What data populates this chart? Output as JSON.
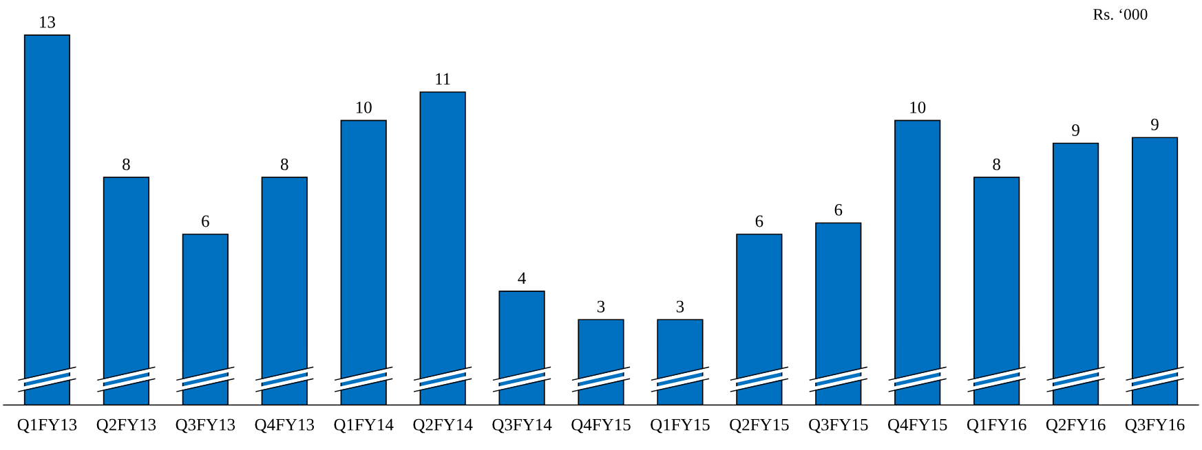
{
  "chart_data": {
    "type": "bar",
    "categories": [
      "Q1FY13",
      "Q2FY13",
      "Q3FY13",
      "Q4FY13",
      "Q1FY14",
      "Q2FY14",
      "Q3FY14",
      "Q4FY15",
      "Q1FY15",
      "Q2FY15",
      "Q3FY15",
      "Q4FY15",
      "Q1FY16",
      "Q2FY16",
      "Q3FY16"
    ],
    "values": [
      13.0,
      8.0,
      6.0,
      8.0,
      10.0,
      11.0,
      4.0,
      3.0,
      3.0,
      6.0,
      6.4,
      10.0,
      8.0,
      9.2,
      9.4
    ],
    "value_labels": [
      "13",
      "8",
      "6",
      "8",
      "10",
      "11",
      "4",
      "3",
      "3",
      "6",
      "6",
      "10",
      "8",
      "9",
      "9"
    ],
    "color": "#0070c0",
    "tick_labels": "x",
    "grid": false,
    "annotations": [
      "Rs. ‘000"
    ]
  }
}
